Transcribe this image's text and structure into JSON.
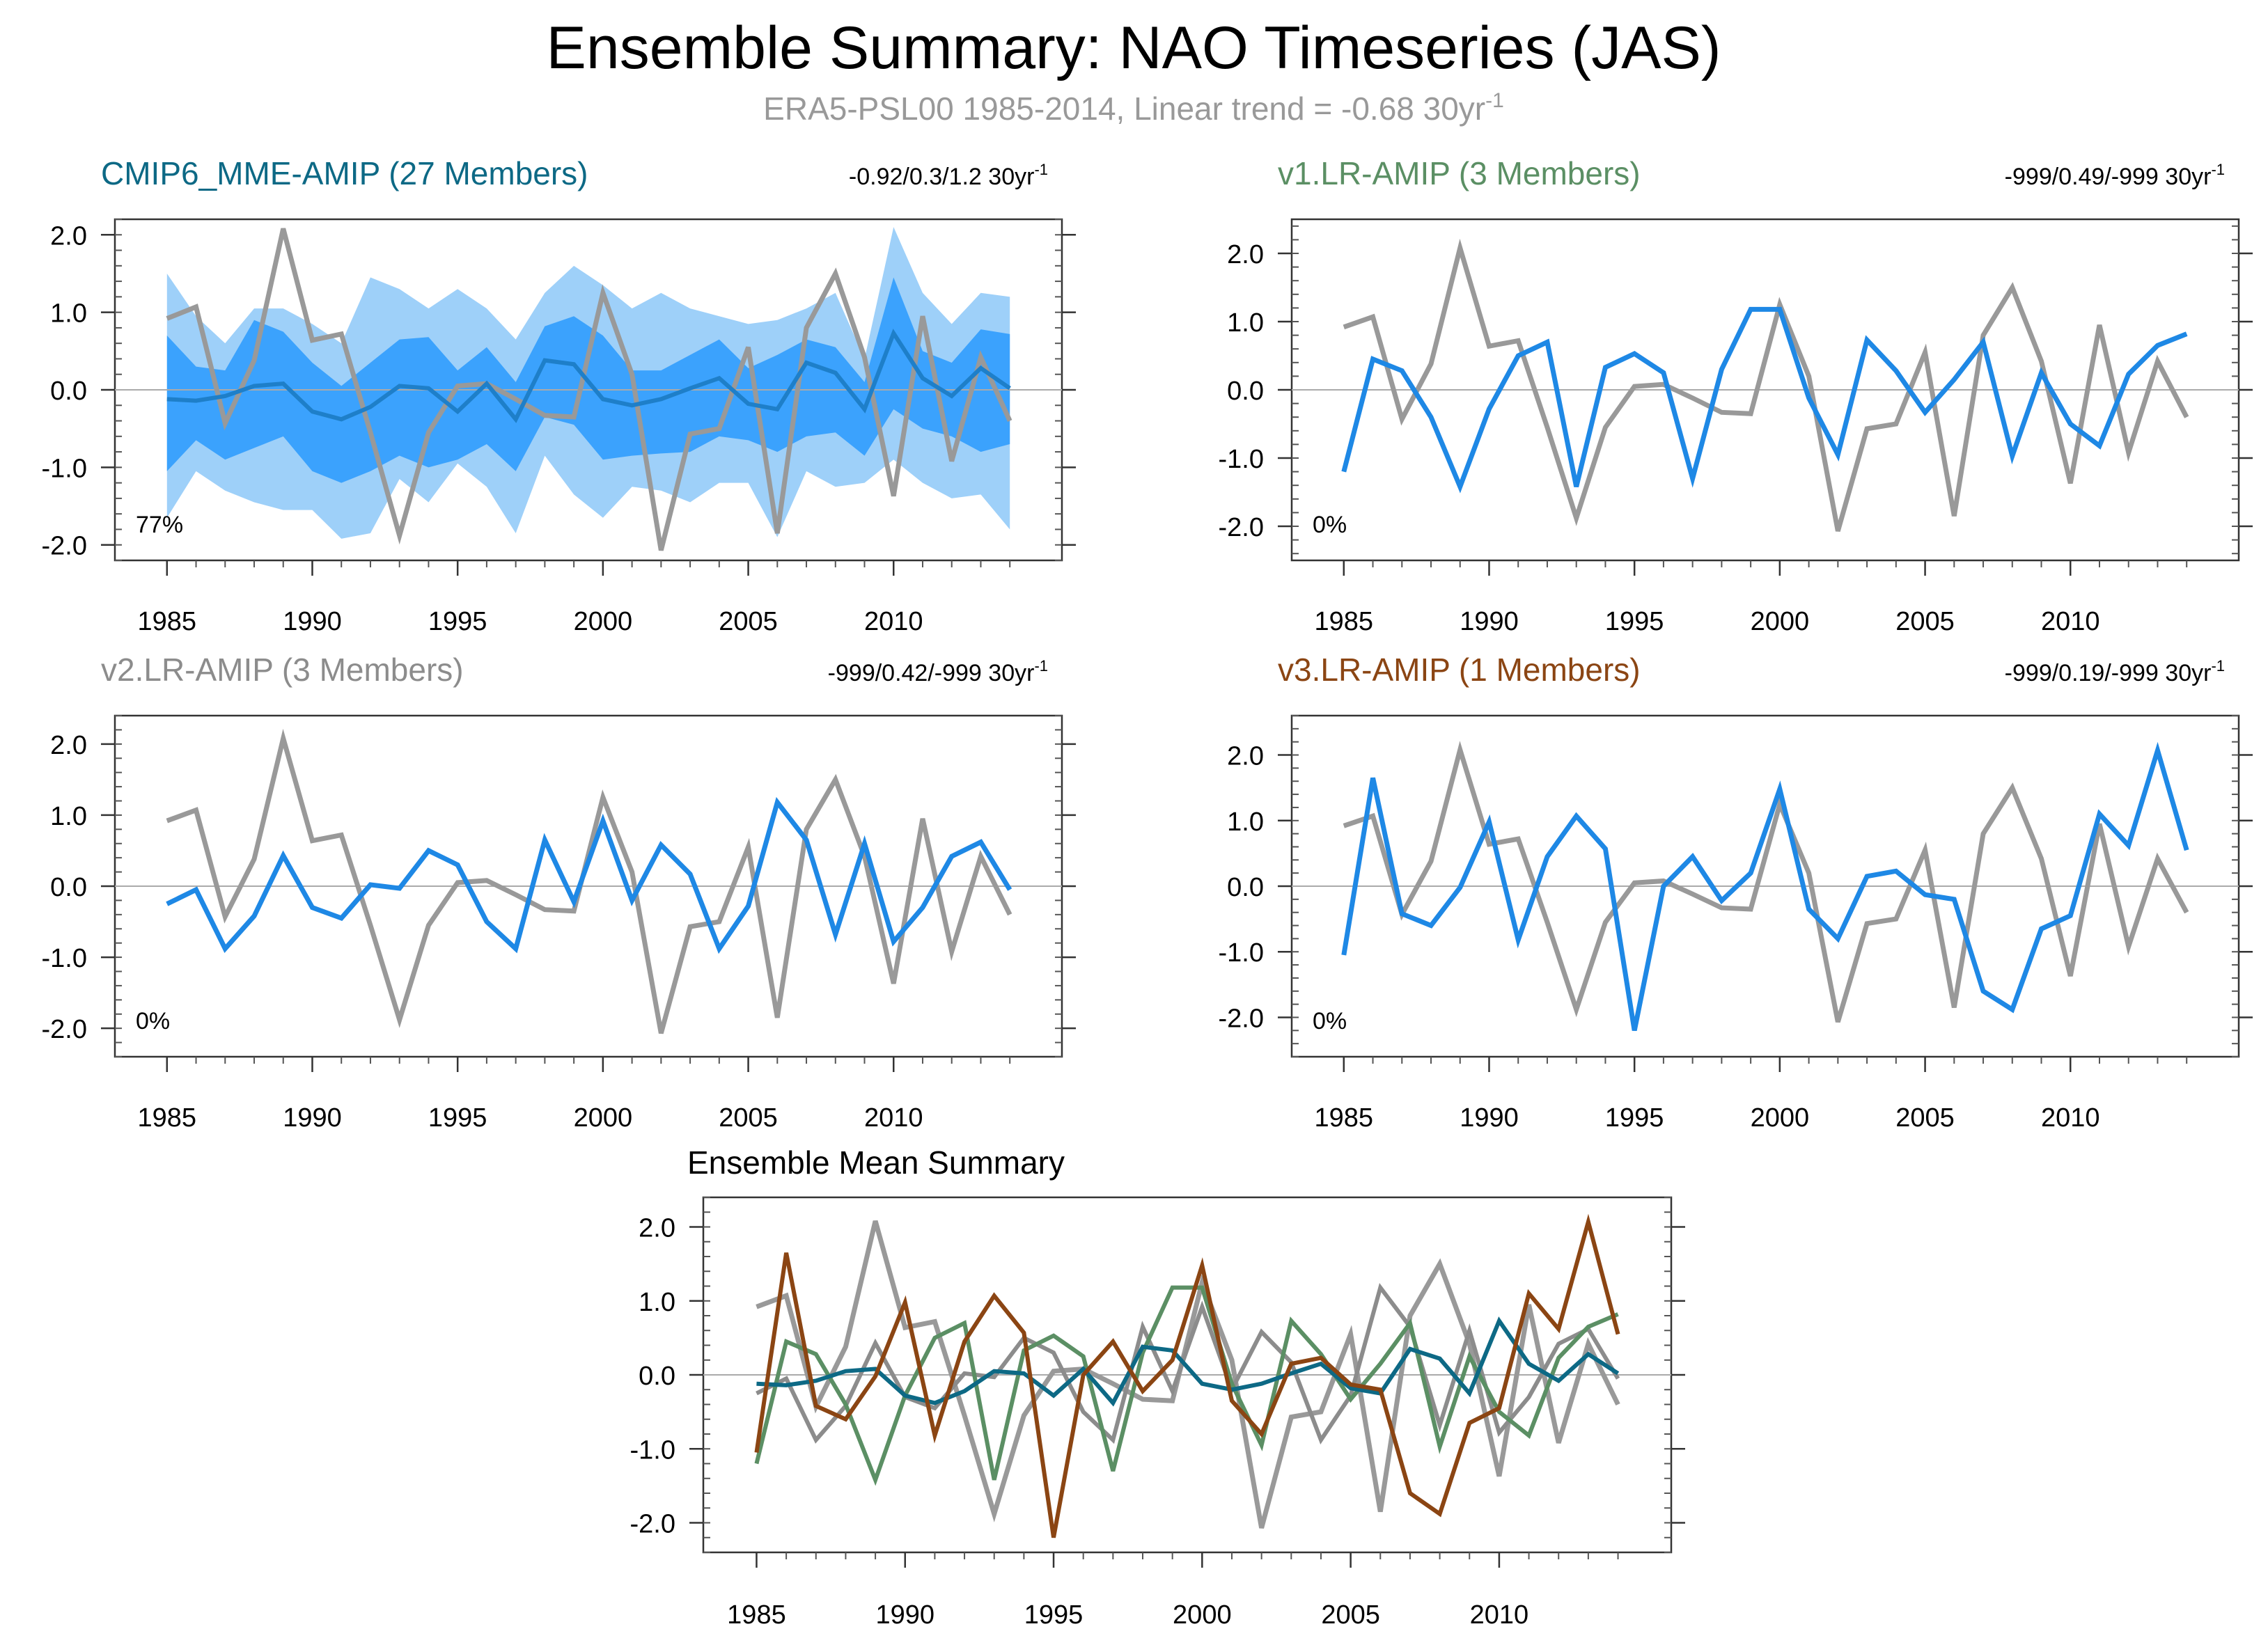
{
  "title": "Ensemble Summary: NAO Timeseries (JAS)",
  "subtitle": "ERA5-PSL00 1985-2014, Linear trend = -0.68 30yr",
  "subtitle_sup": "-1",
  "colors": {
    "obs": "#999999",
    "ens": "#1e88e5",
    "mme": "#0d6985",
    "v1": "#5b8f64",
    "v2": "#8c8c8c",
    "v3": "#8b4513",
    "band_outer": "#9ed0f9",
    "band_inner": "#3ba2fd",
    "zero_line": "#aaaaaa"
  },
  "chart_data": [
    {
      "id": "cmip6",
      "type": "line",
      "title": "CMIP6_MME-AMIP (27 Members)",
      "title_color": "#0d6985",
      "trend": "-0.92/0.3/1.2 30yr",
      "trend_sup": "-1",
      "pct": "77%",
      "ylim": [
        -2.2,
        2.2
      ],
      "yticks": [
        "2.0",
        "1.0",
        "0.0",
        "-1.0",
        "-2.0"
      ],
      "xticks": [
        "1985",
        "1990",
        "1995",
        "2000",
        "2005",
        "2010"
      ],
      "x": [
        1985,
        1986,
        1987,
        1988,
        1989,
        1990,
        1991,
        1992,
        1993,
        1994,
        1995,
        1996,
        1997,
        1998,
        1999,
        2000,
        2001,
        2002,
        2003,
        2004,
        2005,
        2006,
        2007,
        2008,
        2009,
        2010,
        2011,
        2012,
        2013,
        2014
      ],
      "band_outer_upper": [
        1.5,
        0.95,
        0.6,
        1.05,
        1.05,
        0.85,
        0.6,
        1.45,
        1.3,
        1.05,
        1.3,
        1.05,
        0.65,
        1.25,
        1.6,
        1.35,
        1.05,
        1.25,
        1.05,
        0.95,
        0.85,
        0.9,
        1.05,
        1.25,
        0.4,
        2.1,
        1.25,
        0.85,
        1.25,
        1.2
      ],
      "band_inner_upper": [
        0.7,
        0.3,
        0.25,
        0.9,
        0.75,
        0.35,
        0.05,
        0.35,
        0.65,
        0.68,
        0.25,
        0.55,
        0.1,
        0.82,
        0.95,
        0.7,
        0.25,
        0.25,
        0.45,
        0.65,
        0.28,
        0.45,
        0.65,
        0.55,
        0.1,
        1.45,
        0.5,
        0.35,
        0.78,
        0.72
      ],
      "band_inner_lower": [
        -1.05,
        -0.65,
        -0.9,
        -0.75,
        -0.6,
        -1.05,
        -1.2,
        -1.05,
        -0.85,
        -1.0,
        -0.9,
        -0.7,
        -1.05,
        -0.35,
        -0.45,
        -0.9,
        -0.85,
        -0.82,
        -0.8,
        -0.6,
        -0.65,
        -0.8,
        -0.6,
        -0.55,
        -0.85,
        -0.25,
        -0.5,
        -0.6,
        -0.8,
        -0.7
      ],
      "band_outer_lower": [
        -1.65,
        -1.05,
        -1.3,
        -1.45,
        -1.55,
        -1.55,
        -1.92,
        -1.85,
        -1.15,
        -1.45,
        -0.95,
        -1.25,
        -1.85,
        -0.85,
        -1.35,
        -1.65,
        -1.25,
        -1.3,
        -1.45,
        -1.2,
        -1.2,
        -1.9,
        -1.05,
        -1.25,
        -1.2,
        -0.9,
        -1.2,
        -1.4,
        -1.35,
        -1.8
      ],
      "series": [
        {
          "color": "#999999",
          "width": 7,
          "values": [
            0.92,
            1.07,
            -0.43,
            0.38,
            2.08,
            0.64,
            0.72,
            -0.55,
            -1.88,
            -0.55,
            0.05,
            0.08,
            -0.12,
            -0.33,
            -0.35,
            1.25,
            0.2,
            -2.07,
            -0.57,
            -0.5,
            0.55,
            -1.85,
            0.8,
            1.5,
            0.42,
            -1.37,
            0.95,
            -0.92,
            0.42,
            -0.4
          ]
        },
        {
          "color": "#1e7fc9",
          "width": 6,
          "values": [
            -0.12,
            -0.14,
            -0.08,
            0.05,
            0.08,
            -0.28,
            -0.38,
            -0.22,
            0.05,
            0.02,
            -0.28,
            0.08,
            -0.38,
            0.38,
            0.33,
            -0.12,
            -0.2,
            -0.12,
            0.02,
            0.15,
            -0.18,
            -0.25,
            0.35,
            0.22,
            -0.25,
            0.73,
            0.15,
            -0.08,
            0.28,
            0.02
          ]
        }
      ]
    },
    {
      "id": "v1",
      "type": "line",
      "title": "v1.LR-AMIP (3 Members)",
      "title_color": "#5b8f64",
      "trend": "-999/0.49/-999 30yr",
      "trend_sup": "-1",
      "pct": "0%",
      "ylim": [
        -2.5,
        2.5
      ],
      "yticks": [
        "2.0",
        "1.0",
        "0.0",
        "-1.0",
        "-2.0"
      ],
      "xticks": [
        "1985",
        "1990",
        "1995",
        "2000",
        "2005",
        "2010"
      ],
      "x": [
        1985,
        1986,
        1987,
        1988,
        1989,
        1990,
        1991,
        1992,
        1993,
        1994,
        1995,
        1996,
        1997,
        1998,
        1999,
        2000,
        2001,
        2002,
        2003,
        2004,
        2005,
        2006,
        2007,
        2008,
        2009,
        2010,
        2011,
        2012,
        2013,
        2014
      ],
      "series": [
        {
          "color": "#999999",
          "width": 7,
          "values": [
            0.92,
            1.07,
            -0.43,
            0.38,
            2.08,
            0.64,
            0.72,
            -0.55,
            -1.88,
            -0.55,
            0.05,
            0.08,
            -0.12,
            -0.33,
            -0.35,
            1.25,
            0.2,
            -2.07,
            -0.57,
            -0.5,
            0.55,
            -1.85,
            0.8,
            1.5,
            0.42,
            -1.37,
            0.95,
            -0.92,
            0.42,
            -0.4
          ]
        },
        {
          "color": "#1e88e5",
          "width": 7,
          "values": [
            -1.2,
            0.45,
            0.28,
            -0.4,
            -1.42,
            -0.28,
            0.5,
            0.7,
            -1.42,
            0.33,
            0.53,
            0.25,
            -1.3,
            0.3,
            1.18,
            1.18,
            -0.12,
            -0.95,
            0.73,
            0.28,
            -0.33,
            0.15,
            0.7,
            -0.97,
            0.25,
            -0.5,
            -0.82,
            0.23,
            0.65,
            0.82
          ]
        }
      ]
    },
    {
      "id": "v2",
      "type": "line",
      "title": "v2.LR-AMIP (3 Members)",
      "title_color": "#8c8c8c",
      "trend": "-999/0.42/-999 30yr",
      "trend_sup": "-1",
      "pct": "0%",
      "ylim": [
        -2.4,
        2.4
      ],
      "yticks": [
        "2.0",
        "1.0",
        "0.0",
        "-1.0",
        "-2.0"
      ],
      "xticks": [
        "1985",
        "1990",
        "1995",
        "2000",
        "2005",
        "2010"
      ],
      "x": [
        1985,
        1986,
        1987,
        1988,
        1989,
        1990,
        1991,
        1992,
        1993,
        1994,
        1995,
        1996,
        1997,
        1998,
        1999,
        2000,
        2001,
        2002,
        2003,
        2004,
        2005,
        2006,
        2007,
        2008,
        2009,
        2010,
        2011,
        2012,
        2013,
        2014
      ],
      "series": [
        {
          "color": "#999999",
          "width": 7,
          "values": [
            0.92,
            1.07,
            -0.43,
            0.38,
            2.08,
            0.64,
            0.72,
            -0.55,
            -1.88,
            -0.55,
            0.05,
            0.08,
            -0.12,
            -0.33,
            -0.35,
            1.25,
            0.2,
            -2.07,
            -0.57,
            -0.5,
            0.55,
            -1.85,
            0.8,
            1.5,
            0.42,
            -1.37,
            0.95,
            -0.92,
            0.42,
            -0.4
          ]
        },
        {
          "color": "#1e88e5",
          "width": 7,
          "values": [
            -0.25,
            -0.05,
            -0.88,
            -0.42,
            0.43,
            -0.3,
            -0.45,
            0.02,
            -0.03,
            0.5,
            0.3,
            -0.5,
            -0.88,
            0.65,
            -0.22,
            0.92,
            -0.2,
            0.58,
            0.17,
            -0.88,
            -0.28,
            1.18,
            0.65,
            -0.68,
            0.6,
            -0.78,
            -0.3,
            0.42,
            0.62,
            -0.05
          ]
        }
      ]
    },
    {
      "id": "v3",
      "type": "line",
      "title": "v3.LR-AMIP (1 Members)",
      "title_color": "#8b4513",
      "trend": "-999/0.19/-999 30yr",
      "trend_sup": "-1",
      "pct": "0%",
      "ylim": [
        -2.6,
        2.6
      ],
      "yticks": [
        "2.0",
        "1.0",
        "0.0",
        "-1.0",
        "-2.0"
      ],
      "xticks": [
        "1985",
        "1990",
        "1995",
        "2000",
        "2005",
        "2010"
      ],
      "x": [
        1985,
        1986,
        1987,
        1988,
        1989,
        1990,
        1991,
        1992,
        1993,
        1994,
        1995,
        1996,
        1997,
        1998,
        1999,
        2000,
        2001,
        2002,
        2003,
        2004,
        2005,
        2006,
        2007,
        2008,
        2009,
        2010,
        2011,
        2012,
        2013,
        2014
      ],
      "series": [
        {
          "color": "#999999",
          "width": 7,
          "values": [
            0.92,
            1.07,
            -0.43,
            0.38,
            2.08,
            0.64,
            0.72,
            -0.55,
            -1.88,
            -0.55,
            0.05,
            0.08,
            -0.12,
            -0.33,
            -0.35,
            1.25,
            0.2,
            -2.07,
            -0.57,
            -0.5,
            0.55,
            -1.85,
            0.8,
            1.5,
            0.42,
            -1.37,
            0.95,
            -0.92,
            0.42,
            -0.4
          ]
        },
        {
          "color": "#1e88e5",
          "width": 7,
          "values": [
            -1.05,
            1.65,
            -0.42,
            -0.6,
            -0.02,
            0.98,
            -0.82,
            0.45,
            1.07,
            0.57,
            -2.2,
            0.0,
            0.45,
            -0.22,
            0.2,
            1.48,
            -0.35,
            -0.8,
            0.15,
            0.23,
            -0.13,
            -0.2,
            -1.6,
            -1.88,
            -0.65,
            -0.45,
            1.1,
            0.62,
            2.07,
            0.55
          ]
        }
      ]
    },
    {
      "id": "summary",
      "type": "line",
      "title": "Ensemble Mean Summary",
      "title_color": "#000000",
      "ylim": [
        -2.4,
        2.4
      ],
      "yticks": [
        "2.0",
        "1.0",
        "0.0",
        "-1.0",
        "-2.0"
      ],
      "xticks": [
        "1985",
        "1990",
        "1995",
        "2000",
        "2005",
        "2010"
      ],
      "x": [
        1985,
        1986,
        1987,
        1988,
        1989,
        1990,
        1991,
        1992,
        1993,
        1994,
        1995,
        1996,
        1997,
        1998,
        1999,
        2000,
        2001,
        2002,
        2003,
        2004,
        2005,
        2006,
        2007,
        2008,
        2009,
        2010,
        2011,
        2012,
        2013,
        2014
      ],
      "series": [
        {
          "color": "#999999",
          "width": 7,
          "values": [
            0.92,
            1.07,
            -0.43,
            0.38,
            2.08,
            0.64,
            0.72,
            -0.55,
            -1.88,
            -0.55,
            0.05,
            0.08,
            -0.12,
            -0.33,
            -0.35,
            1.25,
            0.2,
            -2.07,
            -0.57,
            -0.5,
            0.55,
            -1.85,
            0.8,
            1.5,
            0.42,
            -1.37,
            0.95,
            -0.92,
            0.42,
            -0.4
          ]
        },
        {
          "color": "#8c8c8c",
          "width": 6,
          "values": [
            -0.25,
            -0.05,
            -0.88,
            -0.42,
            0.43,
            -0.3,
            -0.45,
            0.02,
            -0.03,
            0.5,
            0.3,
            -0.5,
            -0.88,
            0.65,
            -0.22,
            0.92,
            -0.2,
            0.58,
            0.17,
            -0.88,
            -0.28,
            1.18,
            0.65,
            -0.68,
            0.6,
            -0.78,
            -0.3,
            0.42,
            0.62,
            -0.05
          ]
        },
        {
          "color": "#5b8f64",
          "width": 6,
          "values": [
            -1.2,
            0.45,
            0.28,
            -0.4,
            -1.42,
            -0.28,
            0.5,
            0.7,
            -1.42,
            0.33,
            0.53,
            0.25,
            -1.3,
            0.3,
            1.18,
            1.18,
            -0.12,
            -0.95,
            0.73,
            0.28,
            -0.33,
            0.15,
            0.7,
            -0.97,
            0.25,
            -0.5,
            -0.82,
            0.23,
            0.65,
            0.82
          ]
        },
        {
          "color": "#0d6985",
          "width": 6,
          "values": [
            -0.12,
            -0.14,
            -0.08,
            0.05,
            0.08,
            -0.28,
            -0.38,
            -0.22,
            0.05,
            0.02,
            -0.28,
            0.08,
            -0.38,
            0.38,
            0.33,
            -0.12,
            -0.2,
            -0.12,
            0.02,
            0.15,
            -0.18,
            -0.25,
            0.35,
            0.22,
            -0.25,
            0.73,
            0.15,
            -0.08,
            0.28,
            0.02
          ]
        },
        {
          "color": "#8b4513",
          "width": 6,
          "values": [
            -1.05,
            1.65,
            -0.42,
            -0.6,
            -0.02,
            0.98,
            -0.82,
            0.45,
            1.07,
            0.57,
            -2.2,
            0.0,
            0.45,
            -0.22,
            0.2,
            1.48,
            -0.35,
            -0.8,
            0.15,
            0.23,
            -0.13,
            -0.2,
            -1.6,
            -1.88,
            -0.65,
            -0.45,
            1.1,
            0.62,
            2.07,
            0.55
          ]
        }
      ]
    }
  ]
}
